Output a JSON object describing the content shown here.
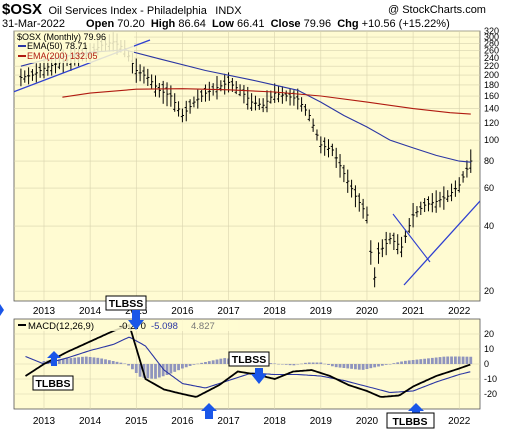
{
  "header": {
    "symbol": "$OSX",
    "name": "Oil Services Index - Philadelphia",
    "exchange": "INDX",
    "copyright": "@ StockCharts.com",
    "date": "31-Mar-2022",
    "open_label": "Open",
    "open": "70.20",
    "high_label": "High",
    "high": "86.64",
    "low_label": "Low",
    "low": "66.41",
    "close_label": "Close",
    "close": "79.96",
    "chg_label": "Chg",
    "chg": "+10.56 (+15.22%)"
  },
  "legend": {
    "price": "$OSX (Monthly) 79.96",
    "ema50": "EMA(50) 78.71",
    "ema200": "EMA(200) 132.05"
  },
  "macd_legend": {
    "label": "MACD(12,26,9)",
    "macd": "-0.270",
    "signal": "-5.098",
    "hist": "4.827"
  },
  "annotations": [
    {
      "name": "tlbss-top",
      "text": "TLBSS"
    },
    {
      "name": "tlbbs-left",
      "text": "TLBBS"
    },
    {
      "name": "tlbss-mid",
      "text": "TLBSS"
    },
    {
      "name": "tlbbs-bottom",
      "text": "TLBBS"
    }
  ],
  "colors": {
    "panel_bg": "#fffbd2",
    "ema50": "#2b36a3",
    "ema200": "#b01a10",
    "trendline": "#2e3fd0",
    "macd_line": "#000000",
    "signal_line": "#2b36a3",
    "histogram": "#8f94bd",
    "arrow": "#1a56e8"
  },
  "chart_data": [
    {
      "type": "line",
      "title": "$OSX Oil Services Index - Philadelphia (Monthly)",
      "scale": "log",
      "ylim": [
        18,
        320
      ],
      "y_ticks": [
        20,
        40,
        60,
        80,
        100,
        120,
        140,
        160,
        180,
        200,
        220,
        240,
        260,
        280,
        300,
        320
      ],
      "x_labels": [
        "2013",
        "2014",
        "2015",
        "2016",
        "2017",
        "2018",
        "2019",
        "2020",
        "2021",
        "2022"
      ],
      "grid": true,
      "series": [
        {
          "name": "$OSX (Monthly)",
          "kind": "ohlc-bars",
          "x": [
            2012.5,
            2012.75,
            2013.0,
            2013.25,
            2013.5,
            2013.75,
            2014.0,
            2014.25,
            2014.5,
            2014.75,
            2015.0,
            2015.25,
            2015.5,
            2015.75,
            2016.0,
            2016.25,
            2016.5,
            2016.75,
            2017.0,
            2017.25,
            2017.5,
            2017.75,
            2018.0,
            2018.25,
            2018.5,
            2018.75,
            2019.0,
            2019.25,
            2019.5,
            2019.75,
            2020.0,
            2020.15,
            2020.25,
            2020.5,
            2020.75,
            2021.0,
            2021.25,
            2021.5,
            2021.75,
            2022.0,
            2022.25
          ],
          "y": [
            195,
            200,
            215,
            225,
            235,
            245,
            255,
            275,
            285,
            265,
            210,
            195,
            170,
            160,
            130,
            150,
            165,
            175,
            185,
            170,
            150,
            145,
            165,
            160,
            155,
            130,
            95,
            90,
            70,
            55,
            45,
            22,
            30,
            35,
            32,
            45,
            50,
            52,
            55,
            62,
            80
          ]
        },
        {
          "name": "EMA(50)",
          "x": [
            2012.5,
            2013.0,
            2014.0,
            2014.75,
            2015.5,
            2016.5,
            2017.5,
            2018.5,
            2019.0,
            2019.5,
            2020.0,
            2020.5,
            2021.0,
            2021.5,
            2022.0,
            2022.25
          ],
          "y": [
            220,
            235,
            255,
            262,
            238,
            210,
            190,
            170,
            150,
            130,
            115,
            100,
            92,
            85,
            80,
            79
          ]
        },
        {
          "name": "EMA(200)",
          "x": [
            2013.4,
            2014.0,
            2015.0,
            2016.0,
            2017.0,
            2018.0,
            2019.0,
            2020.0,
            2021.0,
            2021.8,
            2022.25
          ],
          "y": [
            158,
            165,
            172,
            173,
            171,
            167,
            160,
            150,
            140,
            134,
            132
          ]
        }
      ]
    },
    {
      "type": "line",
      "title": "MACD(12,26,9)",
      "ylim": [
        -30,
        30
      ],
      "y_ticks": [
        -20,
        -10,
        0,
        10,
        20
      ],
      "x_labels": [
        "2013",
        "2014",
        "2015",
        "2016",
        "2017",
        "2018",
        "2019",
        "2020",
        "2021",
        "2022"
      ],
      "grid": true,
      "series": [
        {
          "name": "MACD",
          "x": [
            2012.6,
            2013.0,
            2013.5,
            2014.0,
            2014.5,
            2014.85,
            2015.2,
            2015.6,
            2016.0,
            2016.3,
            2016.8,
            2017.2,
            2017.6,
            2018.0,
            2018.4,
            2018.8,
            2019.2,
            2019.6,
            2020.0,
            2020.3,
            2020.7,
            2021.0,
            2021.5,
            2022.0,
            2022.25
          ],
          "y": [
            -8,
            0,
            8,
            15,
            22,
            26,
            -10,
            -17,
            -20,
            -22,
            -14,
            -5,
            -7,
            -10,
            -5,
            -4,
            -8,
            -14,
            -18,
            -22,
            -21,
            -15,
            -8,
            -3,
            -0.27
          ]
        },
        {
          "name": "Signal",
          "x": [
            2012.6,
            2013.0,
            2013.5,
            2014.0,
            2014.5,
            2014.85,
            2015.2,
            2015.6,
            2016.0,
            2016.5,
            2017.0,
            2017.5,
            2018.0,
            2018.5,
            2019.0,
            2019.5,
            2020.0,
            2020.5,
            2021.0,
            2021.5,
            2022.0,
            2022.25
          ],
          "y": [
            5,
            0,
            4,
            9,
            13,
            18,
            12,
            -4,
            -13,
            -16,
            -11,
            -6,
            -7,
            -7,
            -8,
            -11,
            -15,
            -19,
            -18,
            -12,
            -7,
            -5.098
          ]
        },
        {
          "name": "Histogram",
          "kind": "bars",
          "x": [
            2013.0,
            2013.3,
            2013.6,
            2013.9,
            2014.2,
            2014.5,
            2014.8,
            2015.1,
            2015.4,
            2015.7,
            2016.0,
            2016.3,
            2016.6,
            2016.9,
            2017.2,
            2017.5,
            2017.8,
            2018.1,
            2018.4,
            2018.7,
            2019.0,
            2019.3,
            2019.6,
            2019.9,
            2020.2,
            2020.5,
            2020.8,
            2021.1,
            2021.4,
            2021.7,
            2022.0,
            2022.25
          ],
          "y": [
            2,
            3,
            4,
            5,
            4,
            2,
            0,
            -9,
            -10,
            -7,
            -3,
            0,
            2,
            4,
            3,
            2,
            1,
            0,
            -1,
            1,
            1,
            -2,
            -3,
            -4,
            -2,
            0,
            2,
            3,
            4,
            5,
            5,
            4.827
          ]
        }
      ]
    }
  ]
}
